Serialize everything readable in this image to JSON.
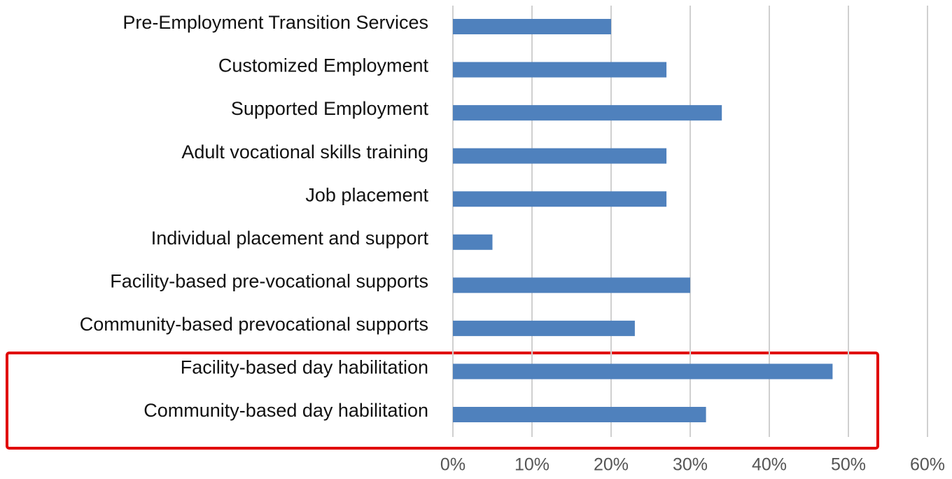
{
  "chart_data": {
    "type": "bar",
    "orientation": "horizontal",
    "categories": [
      "Pre-Employment Transition Services",
      "Customized Employment",
      "Supported Employment",
      "Adult vocational skills training",
      "Job placement",
      "Individual placement and support",
      "Facility-based pre-vocational supports",
      "Community-based prevocational supports",
      "Facility-based day habilitation",
      "Community-based day habilitation"
    ],
    "values": [
      20,
      27,
      34,
      27,
      27,
      5,
      30,
      23,
      48,
      32
    ],
    "color": "#4f81bd",
    "xlim": [
      0,
      60
    ],
    "xticks": [
      {
        "value": 0,
        "label": "0%"
      },
      {
        "value": 10,
        "label": "10%"
      },
      {
        "value": 20,
        "label": "20%"
      },
      {
        "value": 30,
        "label": "30%"
      },
      {
        "value": 40,
        "label": "40%"
      },
      {
        "value": 50,
        "label": "50%"
      },
      {
        "value": 60,
        "label": "60%"
      }
    ],
    "grid": true
  }
}
